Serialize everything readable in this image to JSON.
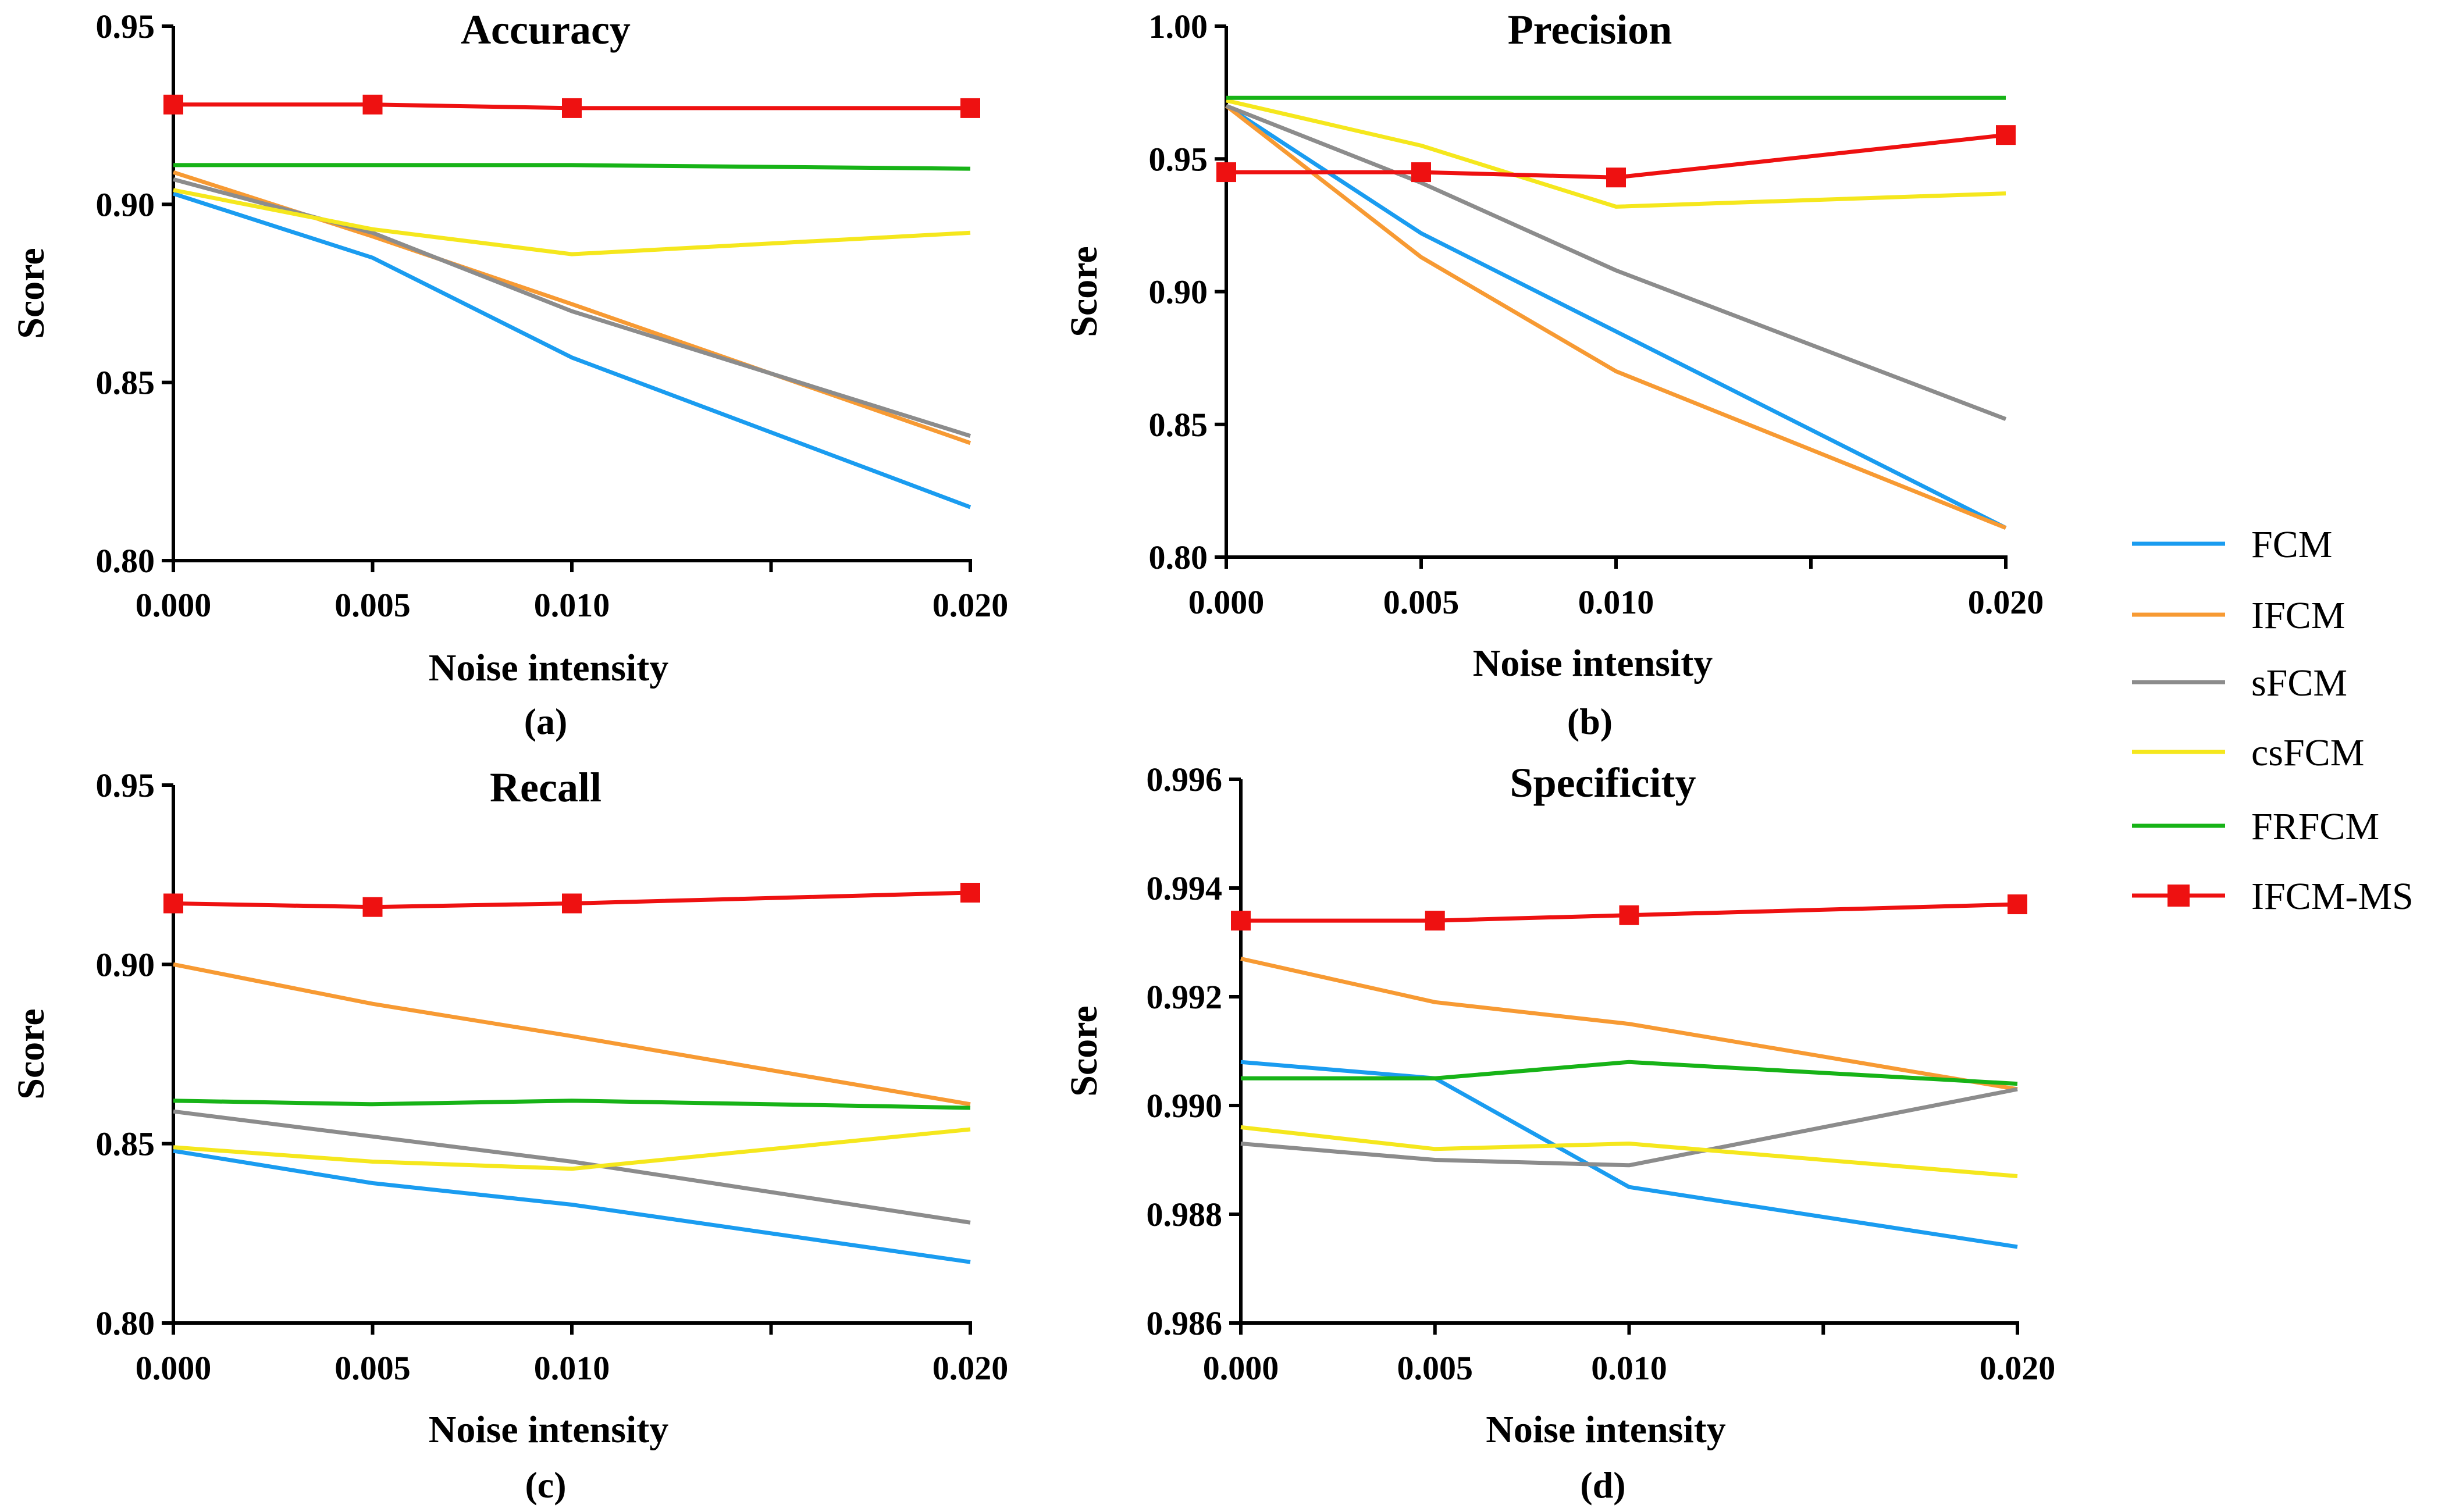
{
  "chart_data": [
    {
      "type": "line",
      "panel_label": "(a)",
      "title": "Accuracy",
      "xlabel": "Noise intensity",
      "ylabel": "Score",
      "x": [
        0.0,
        0.005,
        0.01,
        0.02
      ],
      "x_tick_labels": [
        "0.000",
        "0.005",
        "0.010",
        "0.020"
      ],
      "ylim": [
        0.8,
        0.95
      ],
      "y_ticks": [
        0.8,
        0.85,
        0.9,
        0.95
      ],
      "y_tick_labels": [
        "0.80",
        "0.85",
        "0.90",
        "0.95"
      ],
      "series": [
        {
          "name": "FCM",
          "values": [
            0.903,
            0.885,
            0.857,
            0.815
          ]
        },
        {
          "name": "IFCM",
          "values": [
            0.909,
            0.891,
            0.872,
            0.833
          ]
        },
        {
          "name": "sFCM",
          "values": [
            0.907,
            0.892,
            0.87,
            0.835
          ]
        },
        {
          "name": "csFCM",
          "values": [
            0.904,
            0.893,
            0.886,
            0.892
          ]
        },
        {
          "name": "FRFCM",
          "values": [
            0.911,
            0.911,
            0.911,
            0.91
          ]
        },
        {
          "name": "IFCM-MS",
          "values": [
            0.928,
            0.928,
            0.927,
            0.927
          ]
        }
      ]
    },
    {
      "type": "line",
      "panel_label": "(b)",
      "title": "Precision",
      "xlabel": "Noise intensity",
      "ylabel": "Score",
      "x": [
        0.0,
        0.005,
        0.01,
        0.02
      ],
      "x_tick_labels": [
        "0.000",
        "0.005",
        "0.010",
        "0.020"
      ],
      "ylim": [
        0.8,
        1.0
      ],
      "y_ticks": [
        0.8,
        0.85,
        0.9,
        0.95,
        1.0
      ],
      "y_tick_labels": [
        "0.80",
        "0.85",
        "0.90",
        "0.95",
        "1.00"
      ],
      "series": [
        {
          "name": "FCM",
          "values": [
            0.97,
            0.922,
            0.885,
            0.811
          ]
        },
        {
          "name": "IFCM",
          "values": [
            0.97,
            0.913,
            0.87,
            0.811
          ]
        },
        {
          "name": "sFCM",
          "values": [
            0.97,
            0.941,
            0.908,
            0.852
          ]
        },
        {
          "name": "csFCM",
          "values": [
            0.972,
            0.955,
            0.932,
            0.937
          ]
        },
        {
          "name": "FRFCM",
          "values": [
            0.973,
            0.973,
            0.973,
            0.973
          ]
        },
        {
          "name": "IFCM-MS",
          "values": [
            0.945,
            0.945,
            0.943,
            0.959
          ]
        }
      ]
    },
    {
      "type": "line",
      "panel_label": "(c)",
      "title": "Recall",
      "xlabel": "Noise intensity",
      "ylabel": "Score",
      "x": [
        0.0,
        0.005,
        0.01,
        0.02
      ],
      "x_tick_labels": [
        "0.000",
        "0.005",
        "0.010",
        "0.020"
      ],
      "ylim": [
        0.8,
        0.95
      ],
      "y_ticks": [
        0.8,
        0.85,
        0.9,
        0.95
      ],
      "y_tick_labels": [
        "0.80",
        "0.85",
        "0.90",
        "0.95"
      ],
      "series": [
        {
          "name": "FCM",
          "values": [
            0.848,
            0.839,
            0.833,
            0.817
          ]
        },
        {
          "name": "IFCM",
          "values": [
            0.9,
            0.889,
            0.88,
            0.861
          ]
        },
        {
          "name": "sFCM",
          "values": [
            0.859,
            0.852,
            0.845,
            0.828
          ]
        },
        {
          "name": "csFCM",
          "values": [
            0.849,
            0.845,
            0.843,
            0.854
          ]
        },
        {
          "name": "FRFCM",
          "values": [
            0.862,
            0.861,
            0.862,
            0.86
          ]
        },
        {
          "name": "IFCM-MS",
          "values": [
            0.917,
            0.916,
            0.917,
            0.92
          ]
        }
      ]
    },
    {
      "type": "line",
      "panel_label": "(d)",
      "title": "Specificity",
      "xlabel": "Noise intensity",
      "ylabel": "Score",
      "x": [
        0.0,
        0.005,
        0.01,
        0.02
      ],
      "x_tick_labels": [
        "0.000",
        "0.005",
        "0.010",
        "0.020"
      ],
      "ylim": [
        0.986,
        0.996
      ],
      "y_ticks": [
        0.986,
        0.988,
        0.99,
        0.992,
        0.994,
        0.996
      ],
      "y_tick_labels": [
        "0.986",
        "0.988",
        "0.990",
        "0.992",
        "0.994",
        "0.996"
      ],
      "series": [
        {
          "name": "FCM",
          "values": [
            0.9908,
            0.9905,
            0.9885,
            0.9874
          ]
        },
        {
          "name": "IFCM",
          "values": [
            0.9927,
            0.9919,
            0.9915,
            0.9903
          ]
        },
        {
          "name": "sFCM",
          "values": [
            0.9893,
            0.989,
            0.9889,
            0.9903
          ]
        },
        {
          "name": "csFCM",
          "values": [
            0.9896,
            0.9892,
            0.9893,
            0.9887
          ]
        },
        {
          "name": "FRFCM",
          "values": [
            0.9905,
            0.9905,
            0.9908,
            0.9904
          ]
        },
        {
          "name": "IFCM-MS",
          "values": [
            0.9934,
            0.9934,
            0.9935,
            0.9937
          ]
        }
      ]
    }
  ],
  "legend": {
    "items": [
      {
        "name": "FCM",
        "color": "#1a9cf0",
        "marker": "none"
      },
      {
        "name": "IFCM",
        "color": "#f79a33",
        "marker": "none"
      },
      {
        "name": "sFCM",
        "color": "#8c8c8c",
        "marker": "none"
      },
      {
        "name": "csFCM",
        "color": "#f5e71d",
        "marker": "none"
      },
      {
        "name": "FRFCM",
        "color": "#17b317",
        "marker": "none"
      },
      {
        "name": "IFCM-MS",
        "color": "#ee1111",
        "marker": "square"
      }
    ]
  },
  "colors": {
    "FCM": "#1a9cf0",
    "IFCM": "#f79a33",
    "sFCM": "#8c8c8c",
    "csFCM": "#f5e71d",
    "FRFCM": "#17b317",
    "IFCM-MS": "#ee1111",
    "axis": "#000000"
  }
}
